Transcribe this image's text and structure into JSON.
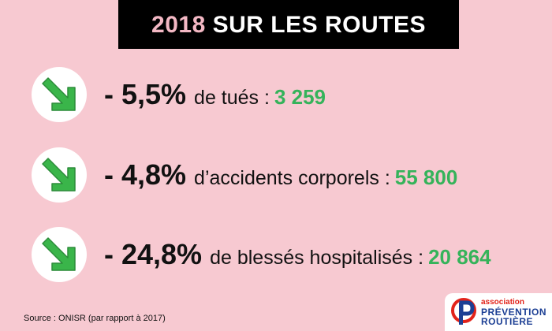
{
  "title": {
    "year": "2018",
    "rest": "SUR LES ROUTES"
  },
  "stats": [
    {
      "percent": "- 5,5%",
      "label": "de tués :",
      "value": "3 259",
      "icon": "arrow-down-right-icon"
    },
    {
      "percent": "- 4,8%",
      "label": "d’accidents corporels :",
      "value": "55 800",
      "icon": "arrow-down-right-icon"
    },
    {
      "percent": "- 24,8%",
      "label": "de blessés hospitalisés :",
      "value": "20 864",
      "icon": "arrow-down-right-icon"
    }
  ],
  "source": "Source : ONISR (par rapport à 2017)",
  "logo": {
    "line1": "association",
    "line2": "PRÉVENTION",
    "line3": "ROUTIÈRE",
    "icon": "prevention-routiere-logo-icon"
  },
  "colors": {
    "background": "#f7c9d1",
    "banner": "#000000",
    "year": "#f3b8c4",
    "value_green": "#35b35a",
    "arrow_green": "#3ab54a",
    "logo_red": "#e2231a",
    "logo_blue": "#1c3f94"
  }
}
